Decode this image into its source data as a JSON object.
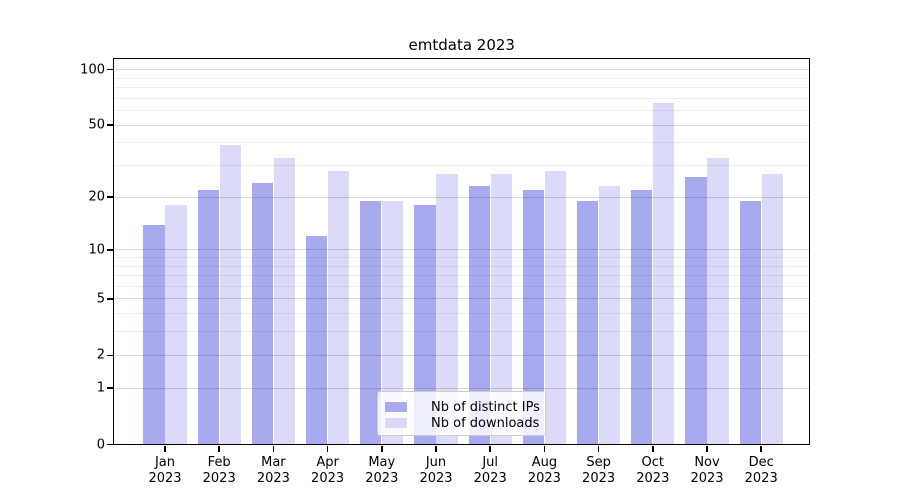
{
  "title": "emtdata 2023",
  "chart_data": {
    "type": "bar",
    "title": "emtdata 2023",
    "categories": [
      "Jan",
      "Feb",
      "Mar",
      "Apr",
      "May",
      "Jun",
      "Jul",
      "Aug",
      "Sep",
      "Oct",
      "Nov",
      "Dec"
    ],
    "x_year_label": "2023",
    "series": [
      {
        "name": "Nb of distinct IPs",
        "values": [
          14,
          22,
          24,
          12,
          19,
          18,
          23,
          22,
          19,
          22,
          26,
          19
        ],
        "fill_rgba": "rgba(40,40,218,0.40)",
        "fill_hex": "#a9a9f0"
      },
      {
        "name": "Nb of downloads",
        "values": [
          18,
          39,
          33,
          28,
          19,
          27,
          27,
          28,
          23,
          66,
          33,
          27
        ],
        "fill_rgba": "rgba(40,40,218,0.17)",
        "fill_hex": "#dadaf8"
      }
    ],
    "yscale": "log1p",
    "ylim": [
      0,
      113
    ],
    "y_major_ticks": [
      0,
      1,
      2,
      5,
      10,
      20,
      50,
      100
    ],
    "y_minor_ticks": [
      3,
      4,
      6,
      7,
      8,
      9,
      30,
      40,
      60,
      70,
      80,
      90
    ],
    "grid": true,
    "legend_position": "lower center"
  },
  "legend": {
    "items": [
      {
        "label": "Nb of distinct IPs"
      },
      {
        "label": "Nb of downloads"
      }
    ]
  },
  "colors": {
    "background": "#ffffff",
    "axis": "#000000",
    "text": "#000000",
    "grid_major": "#d9d9d9",
    "grid_minor": "#eeeeee",
    "legend_border": "#cccccc",
    "bar_base": "#2828da"
  }
}
